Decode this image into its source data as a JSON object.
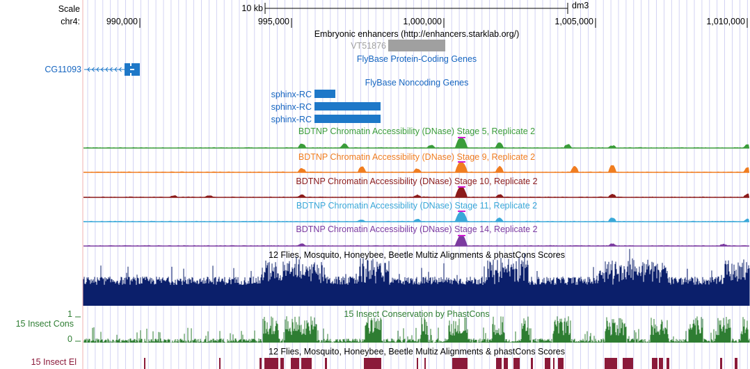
{
  "scale_label": "Scale",
  "chrom_label": "chr4:",
  "scale_bar_label": "10 kb",
  "assembly": "dm3",
  "positions": [
    "990,000",
    "995,000",
    "1,000,000",
    "1,005,000",
    "1,010,000"
  ],
  "tracks": {
    "enhancers": {
      "title": "Embryonic enhancers (http://enhancers.starklab.org/)",
      "item": "VT51876"
    },
    "flybase_coding": {
      "title": "FlyBase Protein-Coding Genes",
      "gene": "CG11093"
    },
    "flybase_noncoding": {
      "title": "FlyBase Noncoding Genes",
      "genes": [
        "sphinx-RC",
        "sphinx-RC",
        "sphinx-RC"
      ]
    },
    "dnase": [
      {
        "title": "BDTNP Chromatin Accessibility (DNase) Stage 5, Replicate 2",
        "color": "#3a9c3a"
      },
      {
        "title": "BDTNP Chromatin Accessibility (DNase) Stage 9, Replicate 2",
        "color": "#f07d20"
      },
      {
        "title": "BDTNP Chromatin Accessibility (DNase) Stage 10, Replicate 2",
        "color": "#8b1a1a"
      },
      {
        "title": "BDTNP Chromatin Accessibility (DNase) Stage 11, Replicate 2",
        "color": "#3aa8d8"
      },
      {
        "title": "BDTNP Chromatin Accessibility (DNase) Stage 14, Replicate 2",
        "color": "#7b3aa0"
      }
    ],
    "multiz": {
      "title": "12 Flies, Mosquito, Honeybee, Beetle Multiz Alignments & phastCons Scores",
      "color": "#0b1f6b"
    },
    "cons": {
      "title": "15 Insect Conservation by PhastCons",
      "left_label": "15 Insect Cons",
      "y_max": "1",
      "y_min": "0",
      "color": "#2e7d32"
    },
    "elements": {
      "title": "12 Flies, Mosquito, Honeybee, Beetle Multiz Alignments & phastCons Scores",
      "left_label": "15 Insect El",
      "color": "#8b1a3a"
    }
  },
  "colors": {
    "link_blue": "#1565c0",
    "feature_blue": "#1e78c8",
    "enhancer_gray": "#a0a0a0",
    "guide_lines": "#c8c8f0",
    "left_border": "#f0b0b0"
  }
}
